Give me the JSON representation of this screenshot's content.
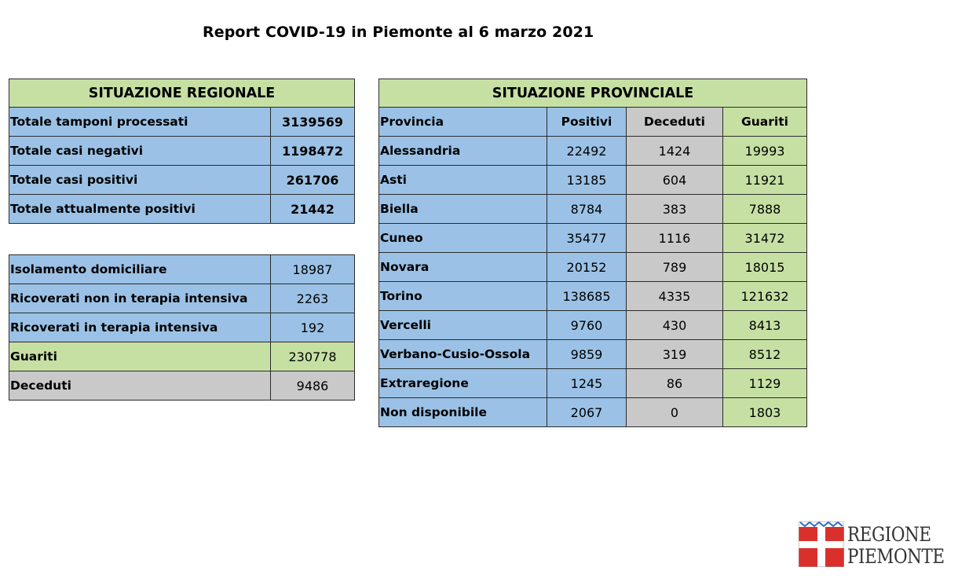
{
  "title": "Report COVID-19 in Piemonte al 6 marzo 2021",
  "regionale": {
    "header": "SITUAZIONE REGIONALE",
    "rows": [
      {
        "label": "Totale tamponi processati",
        "value": "3139569"
      },
      {
        "label": "Totale casi negativi",
        "value": "1198472"
      },
      {
        "label": "Totale casi positivi",
        "value": "261706"
      },
      {
        "label": "Totale attualmente positivi",
        "value": "21442"
      }
    ]
  },
  "dettaglio": {
    "rows": [
      {
        "label": "Isolamento domiciliare",
        "value": "18987",
        "color": "blue"
      },
      {
        "label": "Ricoverati non in terapia intensiva",
        "value": "2263",
        "color": "blue"
      },
      {
        "label": "Ricoverati in terapia intensiva",
        "value": "192",
        "color": "blue"
      },
      {
        "label": "Guariti",
        "value": "230778",
        "color": "green"
      },
      {
        "label": "Deceduti",
        "value": "9486",
        "color": "grey"
      }
    ]
  },
  "provinciale": {
    "header": "SITUAZIONE PROVINCIALE",
    "columns": [
      "Provincia",
      "Positivi",
      "Deceduti",
      "Guariti"
    ],
    "rows": [
      {
        "provincia": "Alessandria",
        "positivi": "22492",
        "deceduti": "1424",
        "guariti": "19993"
      },
      {
        "provincia": "Asti",
        "positivi": "13185",
        "deceduti": "604",
        "guariti": "11921"
      },
      {
        "provincia": "Biella",
        "positivi": "8784",
        "deceduti": "383",
        "guariti": "7888"
      },
      {
        "provincia": "Cuneo",
        "positivi": "35477",
        "deceduti": "1116",
        "guariti": "31472"
      },
      {
        "provincia": "Novara",
        "positivi": "20152",
        "deceduti": "789",
        "guariti": "18015"
      },
      {
        "provincia": "Torino",
        "positivi": "138685",
        "deceduti": "4335",
        "guariti": "121632"
      },
      {
        "provincia": "Vercelli",
        "positivi": "9760",
        "deceduti": "430",
        "guariti": "8413"
      },
      {
        "provincia": "Verbano-Cusio-Ossola",
        "positivi": "9859",
        "deceduti": "319",
        "guariti": "8512"
      },
      {
        "provincia": "Extraregione",
        "positivi": "1245",
        "deceduti": "86",
        "guariti": "1129"
      },
      {
        "provincia": "Non disponibile",
        "positivi": "2067",
        "deceduti": "0",
        "guariti": "1803"
      }
    ]
  },
  "logo": {
    "line1": "REGIONE",
    "line2": "PIEMONTE",
    "icon": "piemonte-coat-of-arms"
  },
  "colors": {
    "blue": "#9bc2e6",
    "green": "#c6e0a4",
    "grey": "#c9c9c9",
    "logo_red": "#d9302c"
  }
}
